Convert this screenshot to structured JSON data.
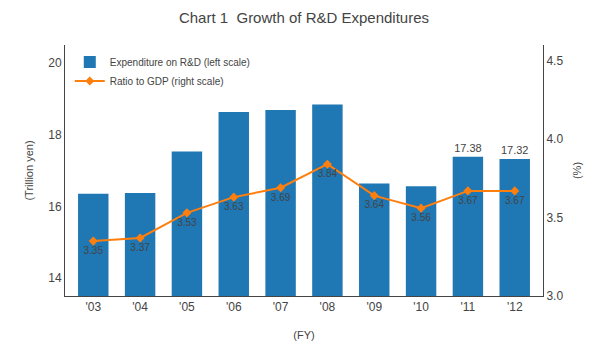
{
  "chart_data": {
    "type": "bar",
    "title": "Chart 1  Growth of R&D Expenditures",
    "xlabel": "(FY)",
    "ylabel": "(Trillion yen)",
    "y2label": "(%)",
    "categories": [
      "'03",
      "'04",
      "'05",
      "'06",
      "'07",
      "'08",
      "'09",
      "'10",
      "'11",
      "'12"
    ],
    "series": [
      {
        "name": "Expenditure on R&D (left scale)",
        "type": "bar",
        "values": [
          16.35,
          16.37,
          17.53,
          18.63,
          18.69,
          18.84,
          16.64,
          16.56,
          17.38,
          17.32
        ],
        "value_labels": [
          null,
          null,
          null,
          null,
          null,
          null,
          null,
          null,
          "17.38",
          "17.32"
        ]
      },
      {
        "name": "Ratio to GDP (right scale)",
        "type": "line",
        "axis": "y2",
        "marker": "diamond",
        "line_style": "solid",
        "data_labels": true,
        "values": [
          3.35,
          3.37,
          3.53,
          3.63,
          3.69,
          3.84,
          3.64,
          3.56,
          3.67,
          3.67
        ]
      }
    ],
    "ylim": [
      13.5,
      20.5
    ],
    "yticks": [
      14,
      16,
      18,
      20
    ],
    "y2lim": [
      3.0,
      4.6
    ],
    "y2ticks": [
      {
        "value": 3.0,
        "label": "3.0"
      },
      3.5,
      {
        "value": 4.0,
        "label": "4.0"
      },
      4.5
    ],
    "grid": false,
    "legend": "upper left"
  }
}
